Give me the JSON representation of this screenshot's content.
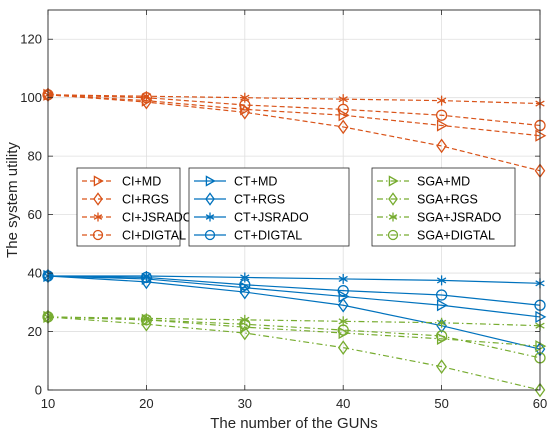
{
  "chart_data": {
    "type": "line",
    "xlabel": "The number of the GUNs",
    "ylabel": "The system utility",
    "xlim": [
      10,
      60
    ],
    "ylim": [
      0,
      130
    ],
    "xticks": [
      10,
      20,
      30,
      40,
      50,
      60
    ],
    "yticks": [
      0,
      20,
      40,
      60,
      80,
      100,
      120
    ],
    "grid": true,
    "x": [
      10,
      20,
      30,
      40,
      50,
      60
    ],
    "colors": {
      "CI": "#d95319",
      "CT": "#0072bd",
      "SGA": "#77ac30"
    },
    "series": [
      {
        "name": "CI+MD",
        "group": "CI",
        "marker": "triangle-right",
        "dash": "dashed",
        "values": [
          101,
          99,
          96,
          94,
          90.5,
          87
        ]
      },
      {
        "name": "CI+RGS",
        "group": "CI",
        "marker": "diamond",
        "dash": "dashed",
        "values": [
          101,
          98.5,
          95,
          90,
          83.5,
          75
        ]
      },
      {
        "name": "CI+JSRADO",
        "group": "CI",
        "marker": "asterisk",
        "dash": "dashed",
        "values": [
          101,
          100.5,
          100,
          99.5,
          99,
          98
        ]
      },
      {
        "name": "CI+DIGTAL",
        "group": "CI",
        "marker": "circle",
        "dash": "dashed",
        "values": [
          101,
          100,
          97.5,
          96,
          94,
          90.5
        ]
      },
      {
        "name": "CT+MD",
        "group": "CT",
        "marker": "triangle-right",
        "dash": "solid",
        "values": [
          39,
          38,
          35,
          32,
          29,
          25
        ]
      },
      {
        "name": "CT+RGS",
        "group": "CT",
        "marker": "diamond",
        "dash": "solid",
        "values": [
          39,
          37,
          33.5,
          29,
          22,
          14
        ]
      },
      {
        "name": "CT+JSRADO",
        "group": "CT",
        "marker": "asterisk",
        "dash": "solid",
        "values": [
          39,
          39,
          38.5,
          38,
          37.5,
          36.5
        ]
      },
      {
        "name": "CT+DIGTAL",
        "group": "CT",
        "marker": "circle",
        "dash": "solid",
        "values": [
          39,
          38.5,
          36,
          34,
          32.5,
          29
        ]
      },
      {
        "name": "SGA+MD",
        "group": "SGA",
        "marker": "triangle-right",
        "dash": "dashdot",
        "values": [
          25,
          24,
          21.5,
          19.5,
          17.5,
          15
        ]
      },
      {
        "name": "SGA+RGS",
        "group": "SGA",
        "marker": "diamond",
        "dash": "dashdot",
        "values": [
          25,
          22.5,
          19.5,
          14.5,
          8,
          0
        ]
      },
      {
        "name": "SGA+JSRADO",
        "group": "SGA",
        "marker": "asterisk",
        "dash": "dashdot",
        "values": [
          25,
          24.5,
          24,
          23.5,
          23,
          22
        ]
      },
      {
        "name": "SGA+DIGTAL",
        "group": "SGA",
        "marker": "circle",
        "dash": "dashdot",
        "values": [
          25,
          24,
          22.5,
          20.5,
          18.5,
          11
        ]
      }
    ],
    "legends": [
      {
        "position": "middle-left",
        "items": [
          "CI+MD",
          "CI+RGS",
          "CI+JSRADO",
          "CI+DIGTAL"
        ]
      },
      {
        "position": "middle-center",
        "items": [
          "CT+MD",
          "CT+RGS",
          "CT+JSRADO",
          "CT+DIGTAL"
        ]
      },
      {
        "position": "middle-right",
        "items": [
          "SGA+MD",
          "SGA+RGS",
          "SGA+JSRADO",
          "SGA+DIGTAL"
        ]
      }
    ]
  }
}
